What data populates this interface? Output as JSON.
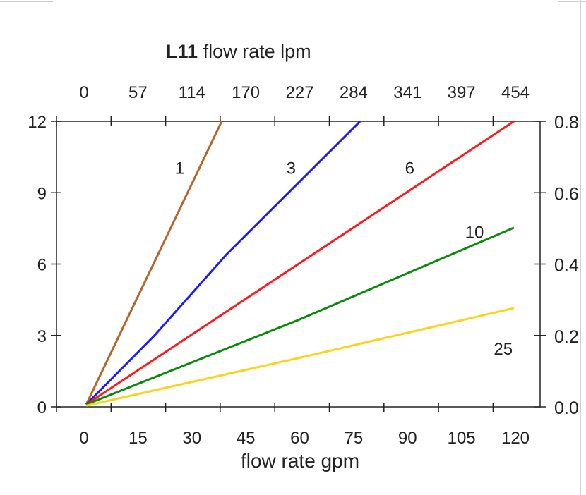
{
  "chart_data": {
    "type": "line",
    "title_bold": "L11",
    "title": "flow rate lpm",
    "xlabel": "flow rate gpm",
    "x_ticks": [
      "0",
      "15",
      "30",
      "45",
      "60",
      "75",
      "90",
      "105",
      "120"
    ],
    "x_top_ticks": [
      "0",
      "57",
      "114",
      "170",
      "227",
      "284",
      "341",
      "397",
      "454"
    ],
    "y_left_ticks": [
      "0",
      "3",
      "6",
      "9",
      "12"
    ],
    "y_right_ticks": [
      "0.0",
      "0.2",
      "0.4",
      "0.6",
      "0.8"
    ],
    "xlim": [
      0,
      120
    ],
    "ylim": [
      0,
      12
    ],
    "y_right_lim": [
      0,
      0.8
    ],
    "grid": false,
    "series": [
      {
        "name": "1",
        "color": "#b5652a",
        "points": [
          [
            1,
            0.1
          ],
          [
            38.7,
            12
          ]
        ],
        "label_at": [
          27,
          9.8
        ]
      },
      {
        "name": "3",
        "color": "#1a1aff",
        "points": [
          [
            1,
            0.1
          ],
          [
            20,
            3
          ],
          [
            40,
            6.4
          ],
          [
            77.2,
            12
          ]
        ],
        "label_at": [
          58,
          9.8
        ]
      },
      {
        "name": "6",
        "color": "#ff1a1a",
        "points": [
          [
            1,
            0.1
          ],
          [
            60,
            6
          ],
          [
            120,
            12
          ]
        ],
        "label_at": [
          91,
          9.8
        ]
      },
      {
        "name": "10",
        "color": "#0a8a0a",
        "points": [
          [
            1,
            0.1
          ],
          [
            60,
            3.65
          ],
          [
            120,
            7.53
          ]
        ],
        "label_at": [
          109,
          7.1
        ]
      },
      {
        "name": "25",
        "color": "#ffd21a",
        "points": [
          [
            1,
            0.05
          ],
          [
            60,
            2.05
          ],
          [
            120,
            4.15
          ]
        ],
        "label_at": [
          117,
          2.2
        ]
      }
    ]
  }
}
